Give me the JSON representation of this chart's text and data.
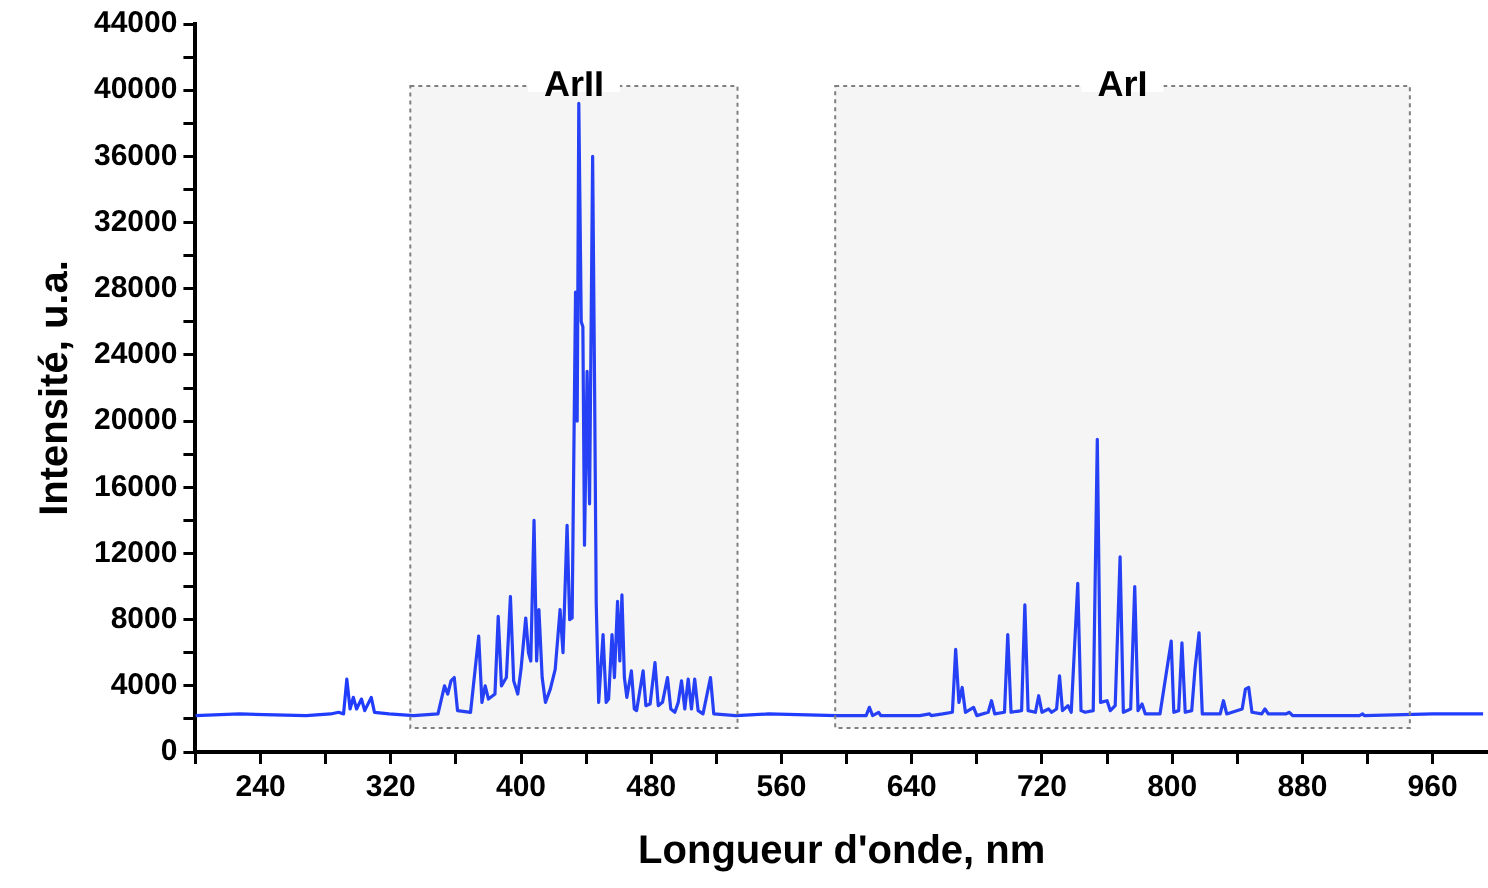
{
  "chart_data": {
    "type": "line",
    "xlabel": "Longueur d'onde, nm",
    "ylabel": "Intensité, u.a.",
    "xlim": [
      200,
      994
    ],
    "xticks": [
      {
        "value": 200,
        "label": null
      },
      240,
      {
        "value": 280,
        "label": null
      },
      320,
      {
        "value": 360,
        "label": null
      },
      400,
      {
        "value": 440,
        "label": null
      },
      480,
      {
        "value": 520,
        "label": null
      },
      560,
      {
        "value": 600,
        "label": null
      },
      640,
      {
        "value": 680,
        "label": null
      },
      720,
      {
        "value": 760,
        "label": null
      },
      800,
      {
        "value": 840,
        "label": null
      },
      880,
      {
        "value": 920,
        "label": null
      },
      960
    ],
    "ylim": [
      0,
      44000
    ],
    "yticks": [
      0,
      {
        "value": 2000,
        "label": null
      },
      4000,
      {
        "value": 6000,
        "label": null
      },
      8000,
      {
        "value": 10000,
        "label": null
      },
      12000,
      {
        "value": 14000,
        "label": null
      },
      16000,
      {
        "value": 18000,
        "label": null
      },
      20000,
      {
        "value": 22000,
        "label": null
      },
      24000,
      {
        "value": 26000,
        "label": null
      },
      28000,
      {
        "value": 30000,
        "label": null
      },
      32000,
      {
        "value": 34000,
        "label": null
      },
      36000,
      {
        "value": 38000,
        "label": null
      },
      40000,
      {
        "value": 42000,
        "label": null
      },
      44000
    ],
    "grid": false,
    "legend": false,
    "marker": "none",
    "line_style": "solid",
    "bands": [
      {
        "axis": "x",
        "from": 332,
        "to": 533,
        "label": "ArII",
        "color": "#808080"
      },
      {
        "axis": "x",
        "from": 593,
        "to": 946,
        "label": "ArI",
        "color": "#808080"
      }
    ],
    "series": [
      {
        "color": "#1f3cff",
        "x": [
          200,
          227,
          268,
          283,
          288,
          291,
          293,
          295,
          297,
          299,
          302,
          304,
          308,
          310,
          319,
          334,
          349,
          353,
          355,
          357,
          359,
          361,
          369,
          374,
          376,
          378,
          380,
          384,
          386,
          388,
          391,
          393.5,
          395.5,
          398,
          400,
          402.9,
          404.6,
          406,
          408,
          409.6,
          411,
          413,
          415,
          418,
          421,
          424,
          425.8,
          428.3,
          429.9,
          431.4,
          433.5,
          434.5,
          435.5,
          437,
          438,
          439,
          440.6,
          442.1,
          444,
          445.2,
          446.2,
          447.7,
          450.4,
          452.3,
          453.8,
          455.9,
          457.4,
          459.3,
          460.7,
          462,
          463.5,
          465,
          467.8,
          469.6,
          471,
          475,
          476.7,
          479.3,
          482.3,
          484.3,
          486.9,
          490,
          492,
          494.5,
          496.6,
          498.6,
          500.6,
          502.7,
          504.7,
          506.7,
          508.8,
          511.8,
          516.4,
          518.4,
          532,
          552,
          594,
          612,
          614,
          616,
          619.7,
          621,
          645,
          651,
          652,
          659,
          665,
          667,
          669,
          671,
          673,
          678,
          680,
          687,
          689,
          691,
          697,
          699,
          701,
          707.5,
          709.5,
          711.5,
          716,
          718,
          720,
          724,
          726,
          729,
          730.8,
          732.6,
          736,
          738,
          742,
          744,
          746.5,
          751.5,
          754,
          756,
          760,
          762,
          765,
          768,
          770,
          774.5,
          777,
          779,
          781.5,
          783.5,
          792.5,
          799.4,
          801,
          804,
          806,
          808,
          812,
          814,
          816.5,
          818.5,
          829.5,
          831.5,
          833.5,
          843,
          845,
          847,
          849,
          855,
          857,
          859,
          870,
          872,
          874,
          915,
          917,
          918,
          960,
          991
        ],
        "values": [
          2200,
          2300,
          2200,
          2300,
          2400,
          2300,
          4400,
          2600,
          3300,
          2600,
          3200,
          2500,
          3300,
          2400,
          2300,
          2200,
          2300,
          4000,
          3500,
          4300,
          4500,
          2500,
          2400,
          7000,
          3000,
          4000,
          3200,
          3500,
          8200,
          4000,
          4500,
          9400,
          4300,
          3500,
          5000,
          8100,
          6000,
          5500,
          14000,
          5500,
          8600,
          4500,
          3000,
          3800,
          5000,
          8600,
          6000,
          13700,
          8000,
          8100,
          27800,
          20000,
          39200,
          26000,
          25700,
          12500,
          23000,
          15000,
          36000,
          22000,
          9000,
          3000,
          7100,
          3000,
          3200,
          7100,
          4500,
          9100,
          5500,
          9500,
          4500,
          3300,
          4900,
          2600,
          2500,
          4900,
          2800,
          2900,
          5400,
          2800,
          3000,
          4500,
          2600,
          2400,
          3000,
          4300,
          2600,
          4400,
          2600,
          4400,
          2500,
          2300,
          4500,
          2300,
          2200,
          2300,
          2200,
          2200,
          2700,
          2200,
          2400,
          2200,
          2200,
          2300,
          2200,
          2300,
          2400,
          6200,
          3000,
          3900,
          2400,
          2700,
          2200,
          2400,
          3100,
          2300,
          2400,
          7100,
          2400,
          2500,
          8900,
          2500,
          2400,
          3400,
          2400,
          2600,
          2400,
          2600,
          4600,
          2500,
          2800,
          2400,
          10200,
          2500,
          2400,
          2500,
          18900,
          3000,
          3100,
          2500,
          2800,
          11800,
          2400,
          2600,
          10000,
          2500,
          2900,
          2300,
          2300,
          6700,
          2400,
          2500,
          6600,
          2400,
          2500,
          5000,
          7200,
          2300,
          2300,
          3100,
          2300,
          2600,
          3800,
          3900,
          2400,
          2300,
          2600,
          2300,
          2300,
          2400,
          2200,
          2200,
          2300,
          2200,
          2300,
          2300
        ]
      }
    ]
  }
}
